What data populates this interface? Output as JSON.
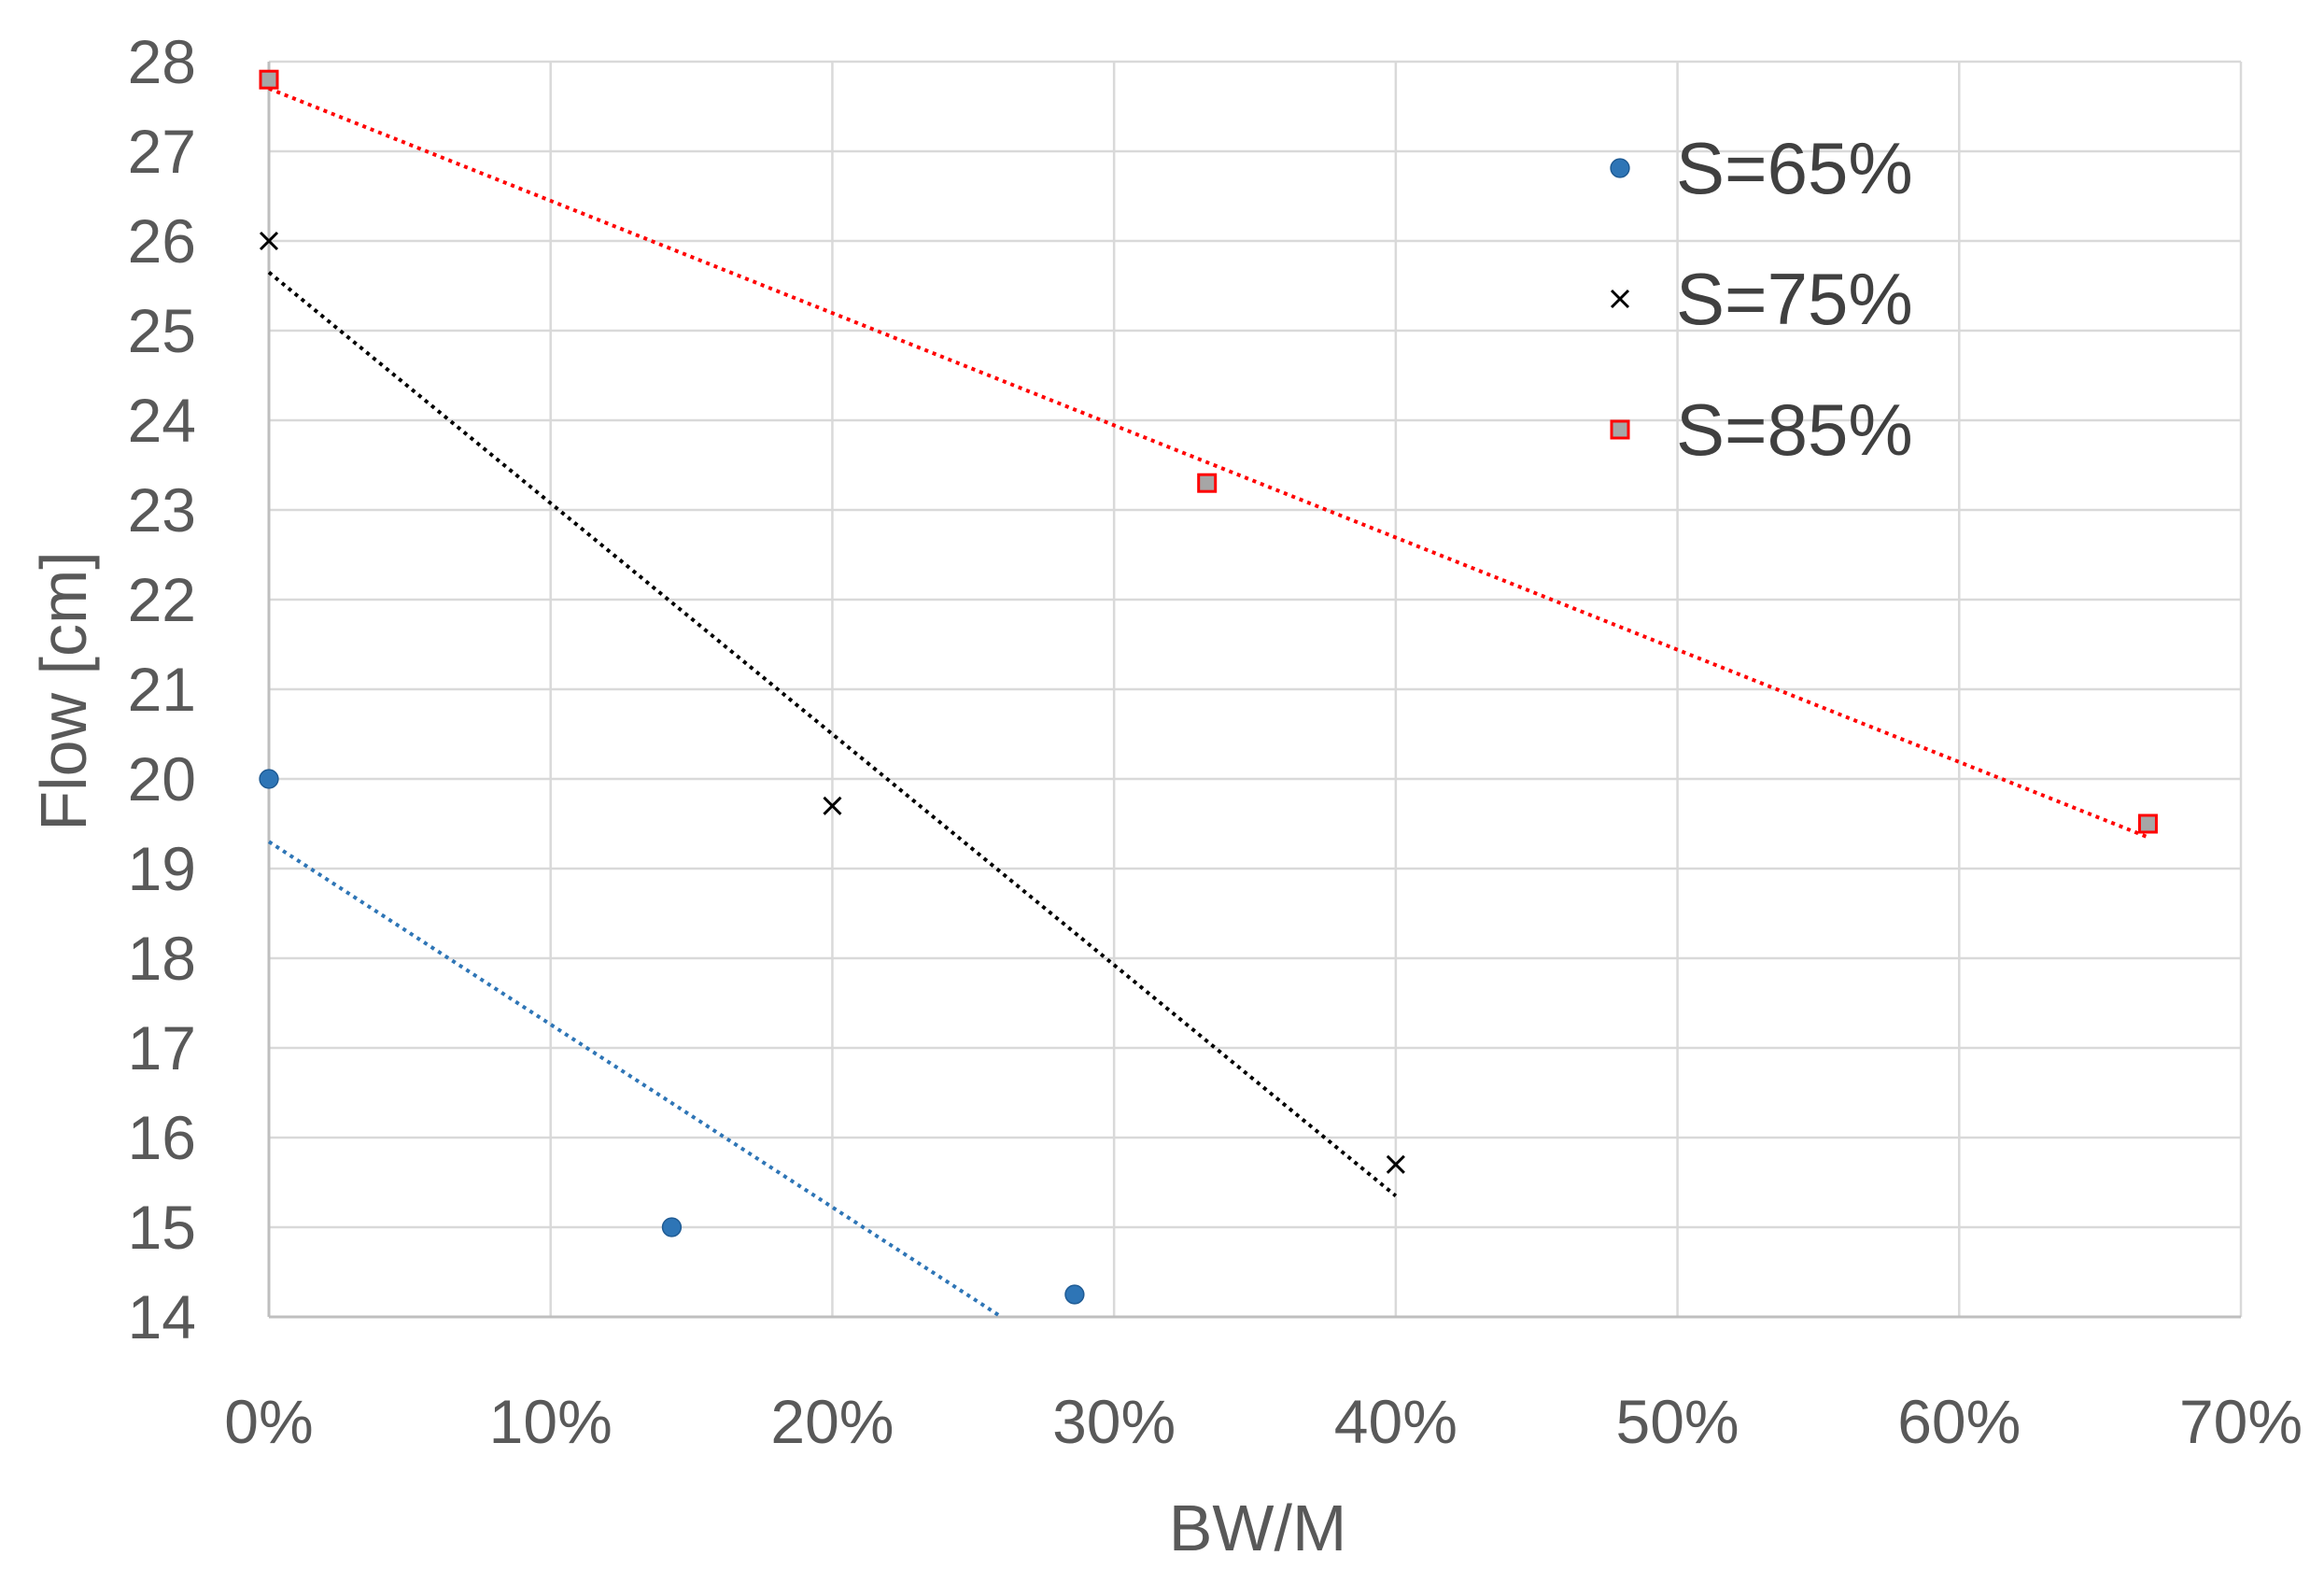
{
  "chart_data": {
    "type": "scatter",
    "title": "",
    "xlabel": "BW/M",
    "ylabel": "Flow [cm]",
    "xlim": [
      0,
      0.7
    ],
    "ylim": [
      14,
      28
    ],
    "x_ticks": [
      0,
      0.1,
      0.2,
      0.3,
      0.4,
      0.5,
      0.6,
      0.7
    ],
    "x_tick_labels": [
      "0%",
      "10%",
      "20%",
      "30%",
      "40%",
      "50%",
      "60%",
      "70%"
    ],
    "y_ticks": [
      14,
      15,
      16,
      17,
      18,
      19,
      20,
      21,
      22,
      23,
      24,
      25,
      26,
      27,
      28
    ],
    "y_tick_labels": [
      "14",
      "15",
      "16",
      "17",
      "18",
      "19",
      "20",
      "21",
      "22",
      "23",
      "24",
      "25",
      "26",
      "27",
      "28"
    ],
    "grid": true,
    "legend_position": "top-right",
    "series": [
      {
        "name": "S=65%",
        "marker": "circle",
        "color": "#2e75b6",
        "x": [
          0,
          0.143,
          0.286
        ],
        "y": [
          20.0,
          15.0,
          14.25
        ],
        "trendline": {
          "type": "linear",
          "x0": 0,
          "y0": 19.3,
          "x1": 0.26,
          "y1": 14.0
        }
      },
      {
        "name": "S=75%",
        "marker": "cross",
        "color": "#000000",
        "x": [
          0,
          0.2,
          0.4
        ],
        "y": [
          26.0,
          19.7,
          15.7
        ],
        "trendline": {
          "type": "linear",
          "x0": 0,
          "y0": 25.65,
          "x1": 0.4,
          "y1": 15.35
        }
      },
      {
        "name": "S=85%",
        "marker": "square",
        "color": "#ff0000",
        "fill": "#a6a6a6",
        "x": [
          0,
          0.333,
          0.667
        ],
        "y": [
          27.8,
          23.3,
          19.5
        ],
        "trendline": {
          "type": "linear",
          "x0": 0,
          "y0": 27.7,
          "x1": 0.667,
          "y1": 19.35
        }
      }
    ]
  }
}
